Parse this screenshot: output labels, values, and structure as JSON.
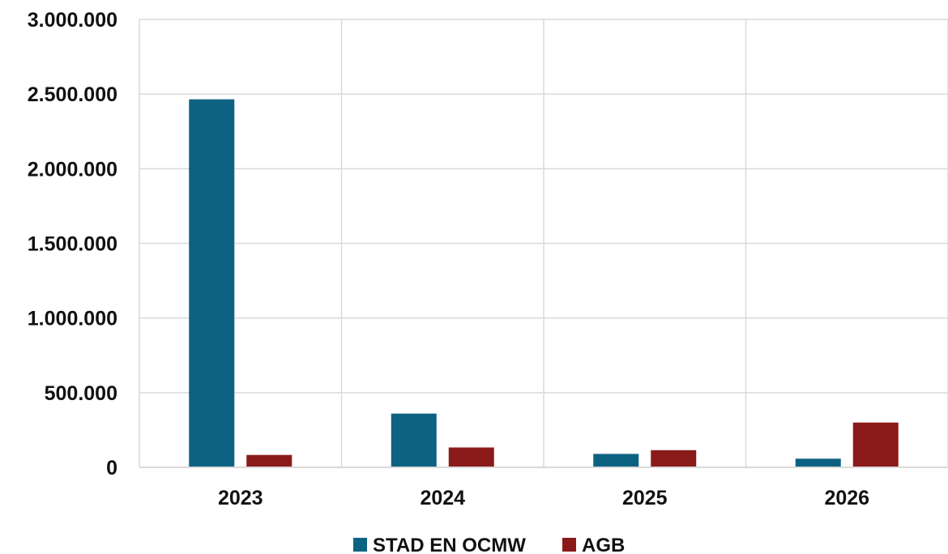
{
  "chart_data": {
    "type": "bar",
    "categories": [
      "2023",
      "2024",
      "2025",
      "2026"
    ],
    "series": [
      {
        "name": "STAD EN OCMW",
        "color": "#0D6282",
        "values": [
          2465000,
          360000,
          90000,
          58000
        ]
      },
      {
        "name": "AGB",
        "color": "#8B1A1A",
        "values": [
          83000,
          133000,
          115000,
          300000
        ]
      }
    ],
    "y_ticks": [
      {
        "value": 0,
        "label": "0"
      },
      {
        "value": 500000,
        "label": "500.000"
      },
      {
        "value": 1000000,
        "label": "1.000.000"
      },
      {
        "value": 1500000,
        "label": "1.500.000"
      },
      {
        "value": 2000000,
        "label": "2.000.000"
      },
      {
        "value": 2500000,
        "label": "2.500.000"
      },
      {
        "value": 3000000,
        "label": "3.000.000"
      }
    ],
    "ylim": [
      0,
      3000000
    ],
    "grid": true,
    "legend_position": "bottom-center",
    "title": "",
    "xlabel": "",
    "ylabel": ""
  }
}
